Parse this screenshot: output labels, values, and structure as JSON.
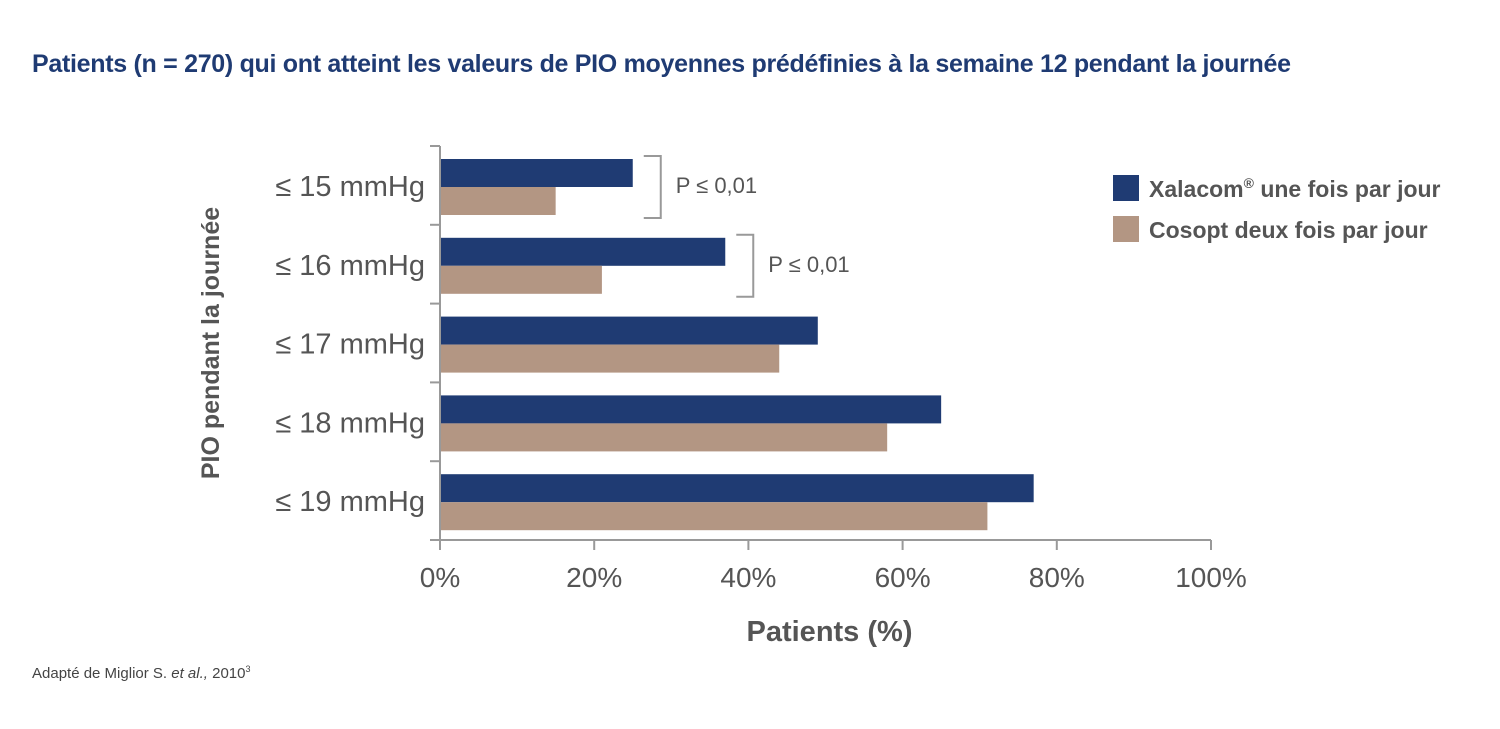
{
  "title": "Patients (n = 270) qui ont atteint les valeurs de PIO moyennes prédéfinies à la semaine 12 pendant la journée",
  "source": {
    "prefix": "Adapté de Miglior S. ",
    "italic": "et al.,",
    "year": " 2010",
    "ref": "3"
  },
  "chart_data": {
    "type": "bar",
    "orientation": "horizontal",
    "categories": [
      "≤ 15 mmHg",
      "≤ 16 mmHg",
      "≤ 17 mmHg",
      "≤ 18 mmHg",
      "≤ 19 mmHg"
    ],
    "series": [
      {
        "name": "Xalacom® une fois par jour",
        "values": [
          25,
          37,
          49,
          65,
          77
        ],
        "color": "#1f3b73"
      },
      {
        "name": "Cosopt deux fois par jour",
        "values": [
          15,
          21,
          44,
          58,
          71
        ],
        "color": "#b39683"
      }
    ],
    "xlim": [
      0,
      100
    ],
    "xticks": [
      "0%",
      "20%",
      "40%",
      "60%",
      "80%",
      "100%"
    ],
    "xlabel": "Patients (%)",
    "ylabel": "PIO pendant la journée",
    "legend": "top-right",
    "grid": false,
    "annotations": [
      {
        "category": "≤ 15 mmHg",
        "text": "P ≤ 0,01"
      },
      {
        "category": "≤ 16 mmHg",
        "text": "P ≤ 0,01"
      }
    ]
  }
}
